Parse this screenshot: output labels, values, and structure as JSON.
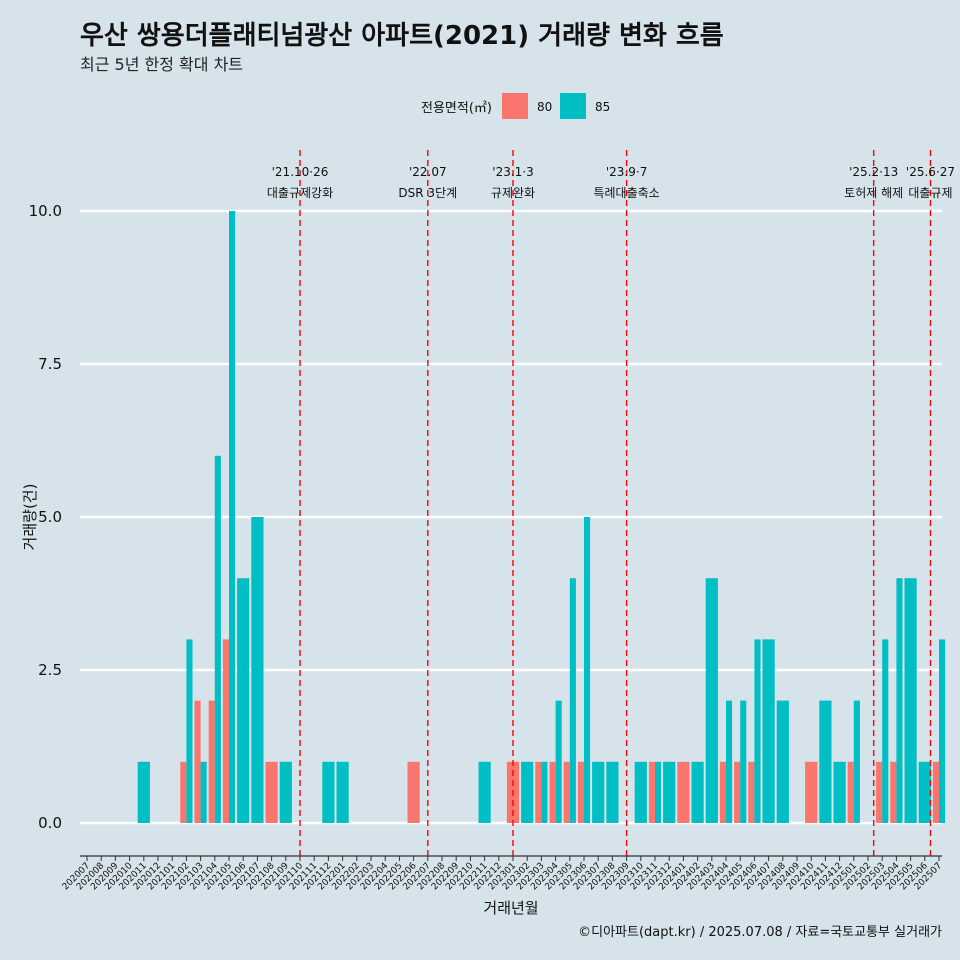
{
  "title": "우산 쌍용더플래티넘광산 아파트(2021) 거래량 변화 흐름",
  "subtitle": "최근 5년 한정 확대 차트",
  "caption": "©디아파트(dapt.kr) / 2025.07.08 / 자료=국토교통부 실거래가",
  "colors": {
    "background": "#d6e3ea",
    "s80": "#f8766d",
    "s85": "#00bfc4",
    "vline": "#ff0000",
    "grid": "#ffffff"
  },
  "chart_data": {
    "type": "bar",
    "ylabel": "거래량(건)",
    "xlabel": "거래년월",
    "ylim": [
      -0.4,
      10.4
    ],
    "yticks": [
      0,
      2.5,
      5,
      7.5,
      10
    ],
    "ytick_labels": [
      "0.0",
      "2.5",
      "5.0",
      "7.5",
      "10.0"
    ],
    "legend": {
      "title": "전용면적(㎡)",
      "position": "top",
      "items": [
        "80",
        "85"
      ]
    },
    "categories": [
      "202007",
      "202008",
      "202009",
      "202010",
      "202011",
      "202012",
      "202101",
      "202102",
      "202103",
      "202104",
      "202105",
      "202106",
      "202107",
      "202108",
      "202109",
      "202110",
      "202111",
      "202112",
      "202201",
      "202202",
      "202203",
      "202204",
      "202205",
      "202206",
      "202207",
      "202208",
      "202209",
      "202210",
      "202211",
      "202212",
      "202301",
      "202302",
      "202303",
      "202304",
      "202305",
      "202306",
      "202307",
      "202308",
      "202309",
      "202310",
      "202311",
      "202312",
      "202401",
      "202402",
      "202403",
      "202404",
      "202405",
      "202406",
      "202407",
      "202408",
      "202409",
      "202410",
      "202411",
      "202412",
      "202501",
      "202502",
      "202503",
      "202504",
      "202505",
      "202506",
      "202507"
    ],
    "series": [
      {
        "name": "80",
        "values": [
          0,
          0,
          0,
          0,
          0,
          0,
          0,
          1,
          2,
          2,
          3,
          0,
          0,
          1,
          0,
          0,
          0,
          0,
          0,
          0,
          0,
          0,
          0,
          1,
          0,
          0,
          0,
          0,
          0,
          0,
          1,
          0,
          1,
          1,
          1,
          1,
          0,
          0,
          0,
          0,
          1,
          0,
          1,
          0,
          0,
          1,
          1,
          1,
          0,
          0,
          0,
          1,
          0,
          0,
          1,
          0,
          1,
          1,
          0,
          0,
          1
        ]
      },
      {
        "name": "85",
        "values": [
          0,
          0,
          0,
          0,
          1,
          0,
          0,
          3,
          1,
          6,
          10,
          4,
          5,
          0,
          1,
          0,
          0,
          1,
          1,
          0,
          0,
          0,
          0,
          0,
          0,
          0,
          0,
          0,
          1,
          0,
          0,
          1,
          1,
          2,
          4,
          5,
          1,
          1,
          0,
          1,
          1,
          1,
          0,
          1,
          4,
          2,
          2,
          3,
          3,
          2,
          0,
          0,
          2,
          1,
          2,
          0,
          3,
          4,
          4,
          1,
          3
        ]
      }
    ],
    "annotations": [
      {
        "position": 15.0,
        "date": "'21.10·26",
        "label": "대출규제강화"
      },
      {
        "position": 24.0,
        "date": "'22.07",
        "label": "DSR 3단계"
      },
      {
        "position": 30.0,
        "date": "'23.1·3",
        "label": "규제완화"
      },
      {
        "position": 38.0,
        "date": "'23.9·7",
        "label": "특례대출축소"
      },
      {
        "position": 55.4,
        "date": "'25.2·13",
        "label": "토허제 해제"
      },
      {
        "position": 59.4,
        "date": "'25.6·27",
        "label": "대출규제"
      }
    ]
  }
}
